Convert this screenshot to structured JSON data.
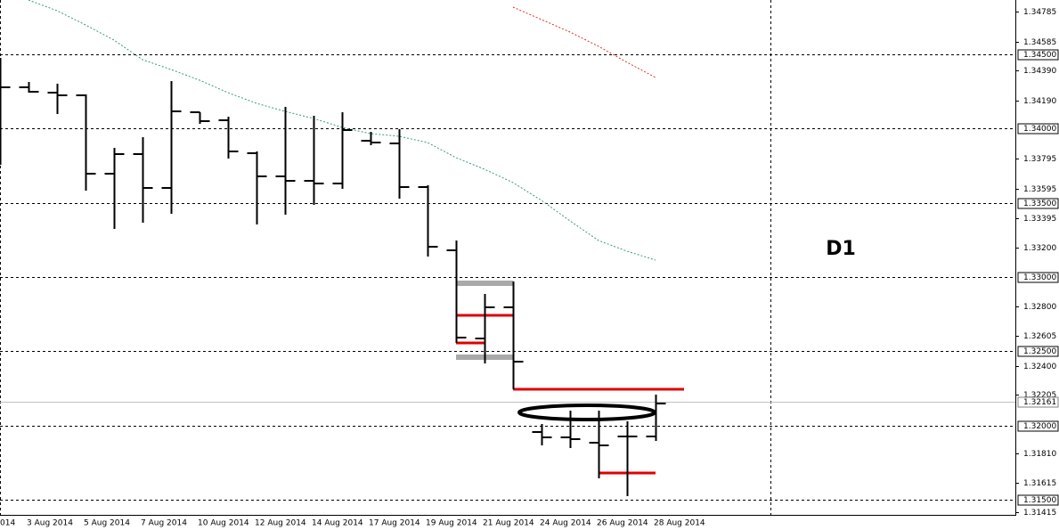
{
  "chart_data": {
    "type": "ohlc",
    "annotation": "D1",
    "categories": [
      "014",
      "3 Aug 2014",
      null,
      "5 Aug 2014",
      null,
      "7 Aug 2014",
      null,
      "10 Aug 2014",
      null,
      "12 Aug 2014",
      null,
      "14 Aug 2014",
      null,
      "17 Aug 2014",
      null,
      "19 Aug 2014",
      null,
      "21 Aug 2014",
      null,
      "24 Aug 2014",
      null,
      "26 Aug 2014",
      null,
      "28 Aug 2014"
    ],
    "open": [
      1.34266,
      1.34278,
      1.34242,
      1.34224,
      1.33696,
      1.33828,
      1.336,
      1.3411,
      1.34056,
      1.33834,
      1.33678,
      1.33648,
      1.3363,
      1.33918,
      1.339,
      1.33606,
      1.3318,
      1.32586,
      1.32796,
      1.31956,
      1.3192,
      1.31884,
      1.31926,
      1.31926
    ],
    "high": [
      1.34476,
      1.34314,
      1.34302,
      1.3423,
      1.3387,
      1.33942,
      1.3432,
      1.3411,
      1.3408,
      1.33846,
      1.34146,
      1.34086,
      1.3411,
      1.33978,
      1.33996,
      1.33618,
      1.33246,
      1.32886,
      1.3297,
      1.3201,
      1.321,
      1.321,
      1.32028,
      1.32208
    ],
    "low": [
      1.33756,
      1.34242,
      1.34098,
      1.33582,
      1.33324,
      1.33366,
      1.33426,
      1.34032,
      1.33798,
      1.33354,
      1.3342,
      1.33486,
      1.33594,
      1.33888,
      1.33528,
      1.33138,
      1.32556,
      1.32418,
      1.32244,
      1.31866,
      1.31848,
      1.31644,
      1.31524,
      1.31896
    ],
    "close": [
      1.34278,
      1.34248,
      1.34224,
      1.33696,
      1.33828,
      1.336,
      1.34116,
      1.3405,
      1.33846,
      1.33678,
      1.33648,
      1.3363,
      1.3399,
      1.33906,
      1.33606,
      1.33204,
      1.32592,
      1.32796,
      1.3243,
      1.3192,
      1.31908,
      1.31866,
      1.31926,
      1.32148
    ],
    "color": "#000000",
    "ylim": [
      1.31398,
      1.34866
    ],
    "yticks": [
      1.34785,
      1.34585,
      {
        "value": 1.3439,
        "label": "1.34390"
      },
      {
        "value": 1.3419,
        "label": "1.34190"
      },
      1.33795,
      1.33595,
      1.33395,
      {
        "value": 1.332,
        "label": "1.33200"
      },
      {
        "value": 1.328,
        "label": "1.32800"
      },
      1.32605,
      {
        "value": 1.324,
        "label": "1.32400"
      },
      1.32205,
      {
        "value": 1.3181,
        "label": "1.31810"
      },
      1.31615,
      1.31415
    ],
    "levels": [
      {
        "value": 1.345,
        "label": "1.34500"
      },
      {
        "value": 1.34,
        "label": "1.34000"
      },
      {
        "value": 1.335,
        "label": "1.33500"
      },
      {
        "value": 1.33,
        "label": "1.33000"
      },
      {
        "value": 1.325,
        "label": "1.32500"
      },
      {
        "value": 1.32,
        "label": "1.32000"
      },
      {
        "value": 1.315,
        "label": "1.31500"
      }
    ],
    "current_price": 1.32161,
    "moving_averages": [
      {
        "color": "#3a9a78",
        "values": [
          null,
          1.34866,
          1.34794,
          1.34698,
          1.34596,
          1.34464,
          1.34398,
          1.34326,
          1.34242,
          1.3417,
          1.34116,
          1.34068,
          1.34008,
          1.33966,
          1.33948,
          1.33906,
          1.33804,
          1.33726,
          1.33636,
          1.33516,
          1.33378,
          1.33246,
          1.33174,
          1.33114
        ]
      },
      {
        "color": "#e03030",
        "values": [
          null,
          null,
          null,
          null,
          null,
          null,
          null,
          null,
          null,
          null,
          null,
          null,
          null,
          null,
          null,
          null,
          null,
          null,
          1.34818,
          1.34734,
          1.3465,
          1.34554,
          1.34446,
          1.34344
        ]
      }
    ],
    "segments": [
      {
        "color": "#e00000",
        "value": 1.32244,
        "from": 18,
        "to": 24
      },
      {
        "color": "#e00000",
        "value": 1.32742,
        "from": 16,
        "to": 18
      },
      {
        "color": "#e00000",
        "value": 1.32556,
        "from": 16,
        "to": 17
      },
      {
        "color": "#e00000",
        "value": 1.3168,
        "from": 21,
        "to": 23
      },
      {
        "color": "#a9a9a9",
        "value": 1.32958,
        "from": 16,
        "to": 18
      },
      {
        "color": "#a9a9a9",
        "value": 1.3246,
        "from": 16,
        "to": 18
      }
    ]
  }
}
